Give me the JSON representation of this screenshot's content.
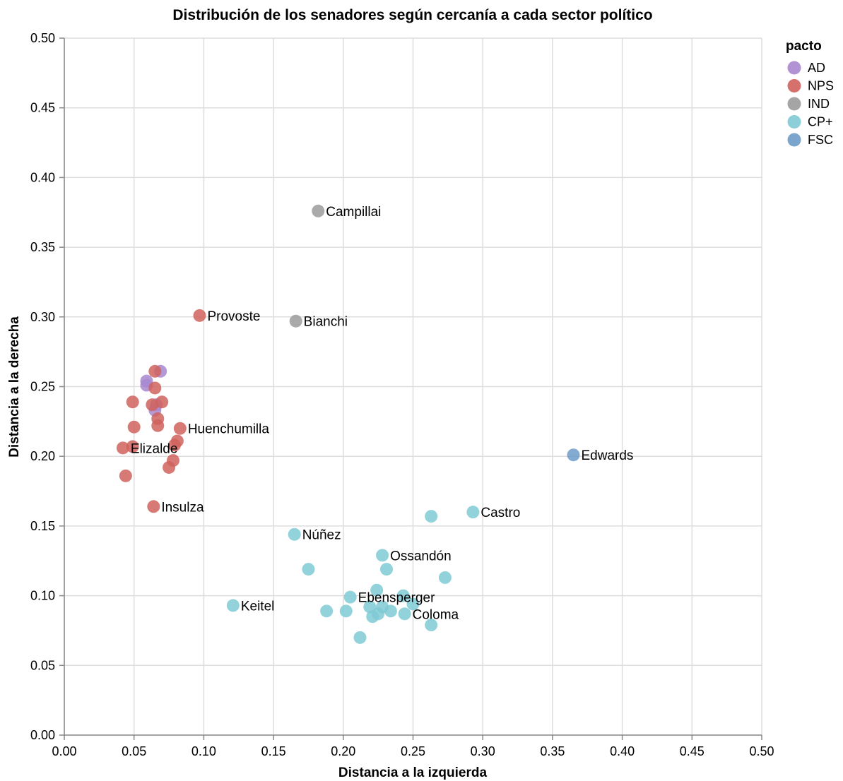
{
  "chart_data": {
    "type": "scatter",
    "title": "Distribución de los senadores según cercanía a cada sector político",
    "xlabel": "Distancia a la izquierda",
    "ylabel": "Distancia a la derecha",
    "xlim": [
      0,
      0.5
    ],
    "ylim": [
      0,
      0.5
    ],
    "x_ticks": [
      "0.00",
      "0.05",
      "0.10",
      "0.15",
      "0.20",
      "0.25",
      "0.30",
      "0.35",
      "0.40",
      "0.45",
      "0.50"
    ],
    "y_ticks": [
      "0.00",
      "0.05",
      "0.10",
      "0.15",
      "0.20",
      "0.25",
      "0.30",
      "0.35",
      "0.40",
      "0.45",
      "0.50"
    ],
    "grid": true,
    "legend": {
      "title": "pacto",
      "placement": "top-right",
      "entries": [
        {
          "name": "AD",
          "color": "#a887cf"
        },
        {
          "name": "NPS",
          "color": "#d0625d"
        },
        {
          "name": "IND",
          "color": "#9b9b9b"
        },
        {
          "name": "CP+",
          "color": "#7fcad5"
        },
        {
          "name": "FSC",
          "color": "#6d9bc8"
        }
      ]
    },
    "series": [
      {
        "name": "AD",
        "points": [
          {
            "x": 0.059,
            "y": 0.254
          },
          {
            "x": 0.059,
            "y": 0.251
          },
          {
            "x": 0.069,
            "y": 0.261
          },
          {
            "x": 0.066,
            "y": 0.237
          },
          {
            "x": 0.065,
            "y": 0.233
          }
        ]
      },
      {
        "name": "NPS",
        "points": [
          {
            "x": 0.097,
            "y": 0.301,
            "label": "Provoste"
          },
          {
            "x": 0.065,
            "y": 0.261
          },
          {
            "x": 0.065,
            "y": 0.249
          },
          {
            "x": 0.049,
            "y": 0.239
          },
          {
            "x": 0.063,
            "y": 0.237
          },
          {
            "x": 0.07,
            "y": 0.239
          },
          {
            "x": 0.067,
            "y": 0.227
          },
          {
            "x": 0.05,
            "y": 0.221
          },
          {
            "x": 0.067,
            "y": 0.222
          },
          {
            "x": 0.083,
            "y": 0.22,
            "label": "Huenchumilla"
          },
          {
            "x": 0.081,
            "y": 0.211
          },
          {
            "x": 0.079,
            "y": 0.208
          },
          {
            "x": 0.042,
            "y": 0.206,
            "label": "Elizalde"
          },
          {
            "x": 0.049,
            "y": 0.207
          },
          {
            "x": 0.078,
            "y": 0.197
          },
          {
            "x": 0.075,
            "y": 0.192
          },
          {
            "x": 0.044,
            "y": 0.186
          },
          {
            "x": 0.064,
            "y": 0.164,
            "label": "Insulza"
          }
        ]
      },
      {
        "name": "IND",
        "points": [
          {
            "x": 0.182,
            "y": 0.376,
            "label": "Campillai"
          },
          {
            "x": 0.166,
            "y": 0.297,
            "label": "Bianchi"
          }
        ]
      },
      {
        "name": "CP+",
        "points": [
          {
            "x": 0.293,
            "y": 0.16,
            "label": "Castro"
          },
          {
            "x": 0.263,
            "y": 0.157
          },
          {
            "x": 0.165,
            "y": 0.144,
            "label": "Núñez"
          },
          {
            "x": 0.228,
            "y": 0.129,
            "label": "Ossandón"
          },
          {
            "x": 0.175,
            "y": 0.119
          },
          {
            "x": 0.231,
            "y": 0.119
          },
          {
            "x": 0.273,
            "y": 0.113
          },
          {
            "x": 0.224,
            "y": 0.104
          },
          {
            "x": 0.243,
            "y": 0.1
          },
          {
            "x": 0.205,
            "y": 0.099,
            "label": "Ebensperger"
          },
          {
            "x": 0.25,
            "y": 0.094
          },
          {
            "x": 0.219,
            "y": 0.092
          },
          {
            "x": 0.228,
            "y": 0.092
          },
          {
            "x": 0.121,
            "y": 0.093,
            "label": "Keitel"
          },
          {
            "x": 0.188,
            "y": 0.089
          },
          {
            "x": 0.202,
            "y": 0.089
          },
          {
            "x": 0.234,
            "y": 0.089
          },
          {
            "x": 0.244,
            "y": 0.087,
            "label": "Coloma"
          },
          {
            "x": 0.225,
            "y": 0.087
          },
          {
            "x": 0.221,
            "y": 0.085
          },
          {
            "x": 0.263,
            "y": 0.079
          },
          {
            "x": 0.212,
            "y": 0.07
          }
        ]
      },
      {
        "name": "FSC",
        "points": [
          {
            "x": 0.365,
            "y": 0.201,
            "label": "Edwards"
          }
        ]
      }
    ]
  }
}
